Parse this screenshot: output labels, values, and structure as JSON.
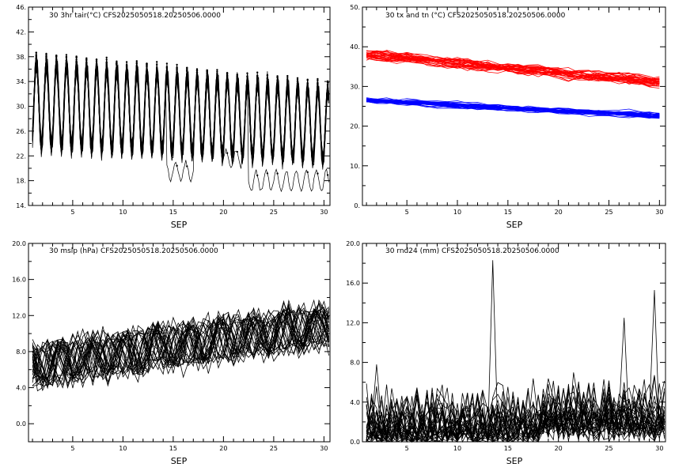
{
  "chart_data": [
    {
      "type": "line",
      "title": "30 3hr tair(°C) CFS2025050518.20250506.0000",
      "xlabel": "SEP",
      "ylabel": "",
      "xlim": [
        0.6,
        30.6
      ],
      "ylim": [
        14,
        46
      ],
      "xticks": [
        5,
        10,
        15,
        20,
        25,
        30
      ],
      "yticks": [
        14,
        18,
        22,
        26,
        30,
        34,
        38,
        42,
        46
      ],
      "ytick_labels": [
        "14.",
        "18.",
        "22.",
        "26.",
        "30.",
        "34.",
        "38.",
        "42.",
        "46."
      ],
      "members": 30,
      "step_days": 0.125,
      "diurnal_mean": 30.5,
      "diurnal_amplitude": 7.0,
      "trend_per_day": -0.12,
      "series_color": "#000000",
      "markers": true,
      "anomalies": [
        {
          "member": 3,
          "from": 14.3,
          "to": 17.0,
          "value": 19.5
        },
        {
          "member": 7,
          "from": 19.8,
          "to": 21.8,
          "value": 21.5
        },
        {
          "member": 11,
          "from": 22.5,
          "to": 30.6,
          "value": 18.0
        }
      ]
    },
    {
      "type": "line",
      "title": "30 tx and tn (°C) CFS2025050518.20250506.0000",
      "xlabel": "SEP",
      "ylabel": "",
      "xlim": [
        0.6,
        30.6
      ],
      "ylim": [
        0,
        50
      ],
      "xticks": [
        5,
        10,
        15,
        20,
        25,
        30
      ],
      "yticks": [
        0,
        10,
        20,
        30,
        40,
        50
      ],
      "ytick_labels": [
        "0.",
        "10.",
        "20.",
        "30.",
        "40.",
        "50."
      ],
      "members": 30,
      "series": [
        {
          "name": "tx",
          "color": "#ff0000",
          "start": 38.0,
          "end": 31.0,
          "spread": 3.0
        },
        {
          "name": "tn",
          "color": "#0000ff",
          "start": 26.5,
          "end": 22.5,
          "spread": 1.5
        }
      ]
    },
    {
      "type": "line",
      "title": "30 mslp (hPa) CFS2025050518.20250506.0000",
      "xlabel": "SEP",
      "ylabel": "",
      "xlim": [
        0.6,
        30.6
      ],
      "ylim": [
        -2,
        20
      ],
      "xticks": [
        5,
        10,
        15,
        20,
        25,
        30
      ],
      "yticks": [
        0,
        4,
        8,
        12,
        16,
        20
      ],
      "ytick_labels": [
        "0.0",
        "4.0",
        "8.0",
        "12.0",
        "16.0",
        "20.0"
      ],
      "members": 30,
      "start": 6.5,
      "end": 11.0,
      "series_color": "#000000"
    },
    {
      "type": "line",
      "title": "30 rnd24 (mm) CFS2025050518.20250506.0000",
      "xlabel": "SEP",
      "ylabel": "",
      "xlim": [
        0.6,
        30.6
      ],
      "ylim": [
        0,
        20
      ],
      "xticks": [
        5,
        10,
        15,
        20,
        25,
        30
      ],
      "yticks": [
        0,
        4,
        8,
        12,
        16,
        20
      ],
      "ytick_labels": [
        "0.0",
        "4.0",
        "8.0",
        "12.0",
        "16.0",
        "20.0"
      ],
      "members": 30,
      "series_color": "#000000",
      "peaks": [
        {
          "x": 13.3,
          "value": 18.3
        },
        {
          "x": 26.5,
          "value": 12.5
        },
        {
          "x": 29.5,
          "value": 15.3
        },
        {
          "x": 2.0,
          "value": 7.8
        }
      ]
    }
  ]
}
